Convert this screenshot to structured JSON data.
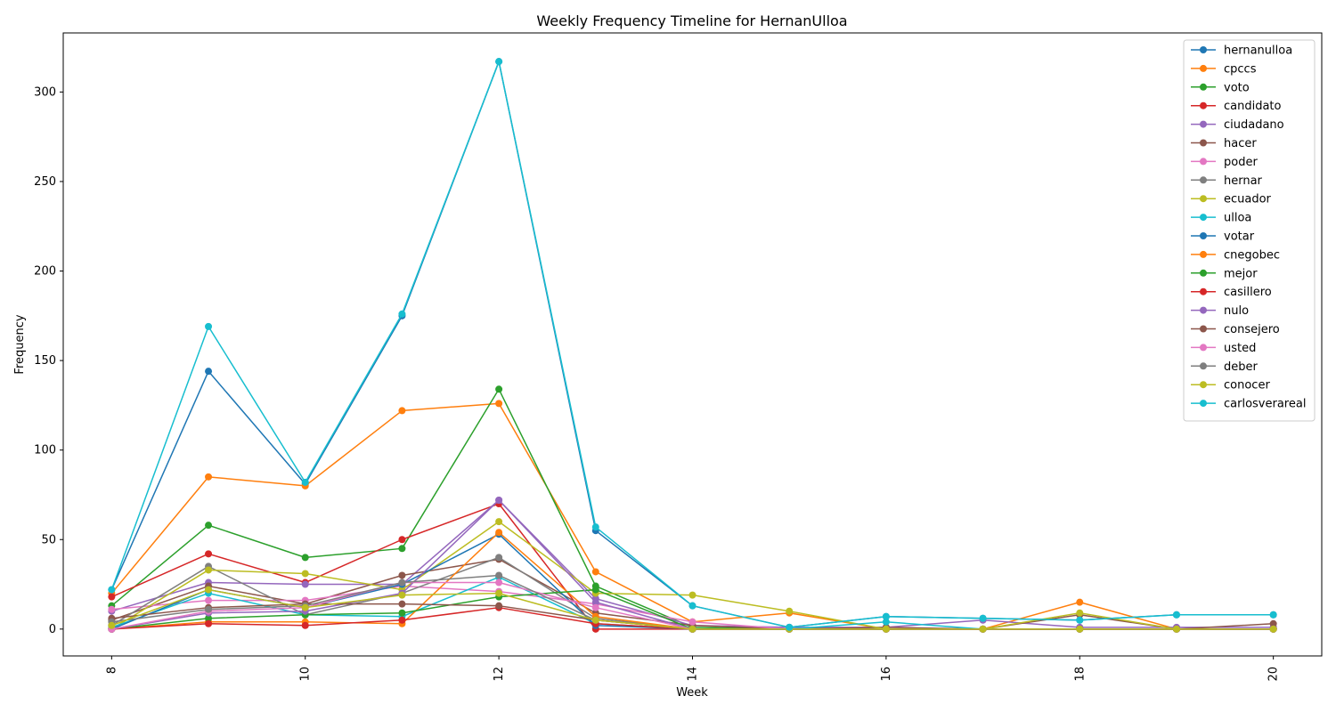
{
  "chart_data": {
    "type": "line",
    "title": "Weekly Frequency Timeline for HernanUlloa",
    "xlabel": "Week",
    "ylabel": "Frequency",
    "xlim": [
      7.5,
      20.5
    ],
    "ylim": [
      -15,
      333
    ],
    "x_ticks": [
      8,
      10,
      12,
      14,
      16,
      18,
      20
    ],
    "y_ticks": [
      0,
      50,
      100,
      150,
      200,
      250,
      300
    ],
    "legend_position": "top-right",
    "grid": false,
    "x": [
      8,
      9,
      10,
      11,
      12,
      13,
      14,
      15,
      16,
      17,
      18,
      19,
      20
    ],
    "series": [
      {
        "name": "hernanulloa",
        "color": "#1f77b4",
        "values": [
          22,
          144,
          81,
          175,
          317,
          55,
          13,
          1,
          7,
          6,
          5,
          8,
          8
        ]
      },
      {
        "name": "cpccs",
        "color": "#ff7f0e",
        "values": [
          20,
          85,
          80,
          122,
          126,
          32,
          4,
          9,
          0,
          0,
          15,
          0,
          0
        ]
      },
      {
        "name": "voto",
        "color": "#2ca02c",
        "values": [
          13,
          58,
          40,
          45,
          134,
          24,
          1,
          0,
          0,
          0,
          0,
          0,
          0
        ]
      },
      {
        "name": "candidato",
        "color": "#d62728",
        "values": [
          18,
          42,
          26,
          50,
          70,
          0,
          0,
          0,
          0,
          0,
          0,
          0,
          0
        ]
      },
      {
        "name": "ciudadano",
        "color": "#9467bd",
        "values": [
          10,
          26,
          25,
          25,
          72,
          17,
          2,
          1,
          1,
          5,
          1,
          1,
          1
        ]
      },
      {
        "name": "hacer",
        "color": "#8c564b",
        "values": [
          5,
          24,
          14,
          30,
          39,
          9,
          2,
          0,
          1,
          0,
          8,
          0,
          3
        ]
      },
      {
        "name": "poder",
        "color": "#e377c2",
        "values": [
          11,
          16,
          16,
          24,
          21,
          14,
          4,
          0,
          0,
          0,
          0,
          0,
          0
        ]
      },
      {
        "name": "hernar",
        "color": "#7f7f7f",
        "values": [
          2,
          35,
          8,
          20,
          40,
          6,
          0,
          0,
          0,
          0,
          0,
          0,
          0
        ]
      },
      {
        "name": "ecuador",
        "color": "#bcbd22",
        "values": [
          0,
          33,
          31,
          22,
          60,
          20,
          19,
          10,
          0,
          0,
          9,
          0,
          0
        ]
      },
      {
        "name": "ulloa",
        "color": "#17becf",
        "values": [
          1,
          20,
          8,
          7,
          29,
          3,
          0,
          0,
          4,
          0,
          0,
          0,
          0
        ]
      },
      {
        "name": "votar",
        "color": "#1f77b4",
        "values": [
          0,
          22,
          12,
          25,
          53,
          2,
          0,
          0,
          0,
          0,
          0,
          0,
          0
        ]
      },
      {
        "name": "cnegobec",
        "color": "#ff7f0e",
        "values": [
          0,
          4,
          4,
          3,
          54,
          7,
          0,
          0,
          0,
          0,
          0,
          0,
          0
        ]
      },
      {
        "name": "mejor",
        "color": "#2ca02c",
        "values": [
          0,
          6,
          8,
          9,
          18,
          22,
          0,
          0,
          0,
          0,
          0,
          0,
          0
        ]
      },
      {
        "name": "casillero",
        "color": "#d62728",
        "values": [
          0,
          3,
          2,
          5,
          12,
          3,
          0,
          0,
          0,
          0,
          0,
          0,
          0
        ]
      },
      {
        "name": "nulo",
        "color": "#9467bd",
        "values": [
          0,
          9,
          10,
          20,
          72,
          15,
          0,
          0,
          0,
          0,
          0,
          0,
          0
        ]
      },
      {
        "name": "consejero",
        "color": "#8c564b",
        "values": [
          6,
          12,
          14,
          14,
          13,
          5,
          0,
          0,
          0,
          0,
          0,
          0,
          0
        ]
      },
      {
        "name": "usted",
        "color": "#e377c2",
        "values": [
          0,
          10,
          12,
          26,
          26,
          12,
          0,
          0,
          0,
          0,
          0,
          0,
          0
        ]
      },
      {
        "name": "deber",
        "color": "#7f7f7f",
        "values": [
          4,
          11,
          13,
          26,
          30,
          5,
          0,
          0,
          0,
          0,
          0,
          0,
          0
        ]
      },
      {
        "name": "conocer",
        "color": "#bcbd22",
        "values": [
          2,
          22,
          12,
          19,
          20,
          5,
          0,
          0,
          0,
          0,
          0,
          0,
          0
        ]
      },
      {
        "name": "carlosverareal",
        "color": "#17becf",
        "values": [
          22,
          169,
          82,
          176,
          317,
          57,
          13,
          1,
          7,
          6,
          5,
          8,
          8
        ]
      }
    ]
  }
}
